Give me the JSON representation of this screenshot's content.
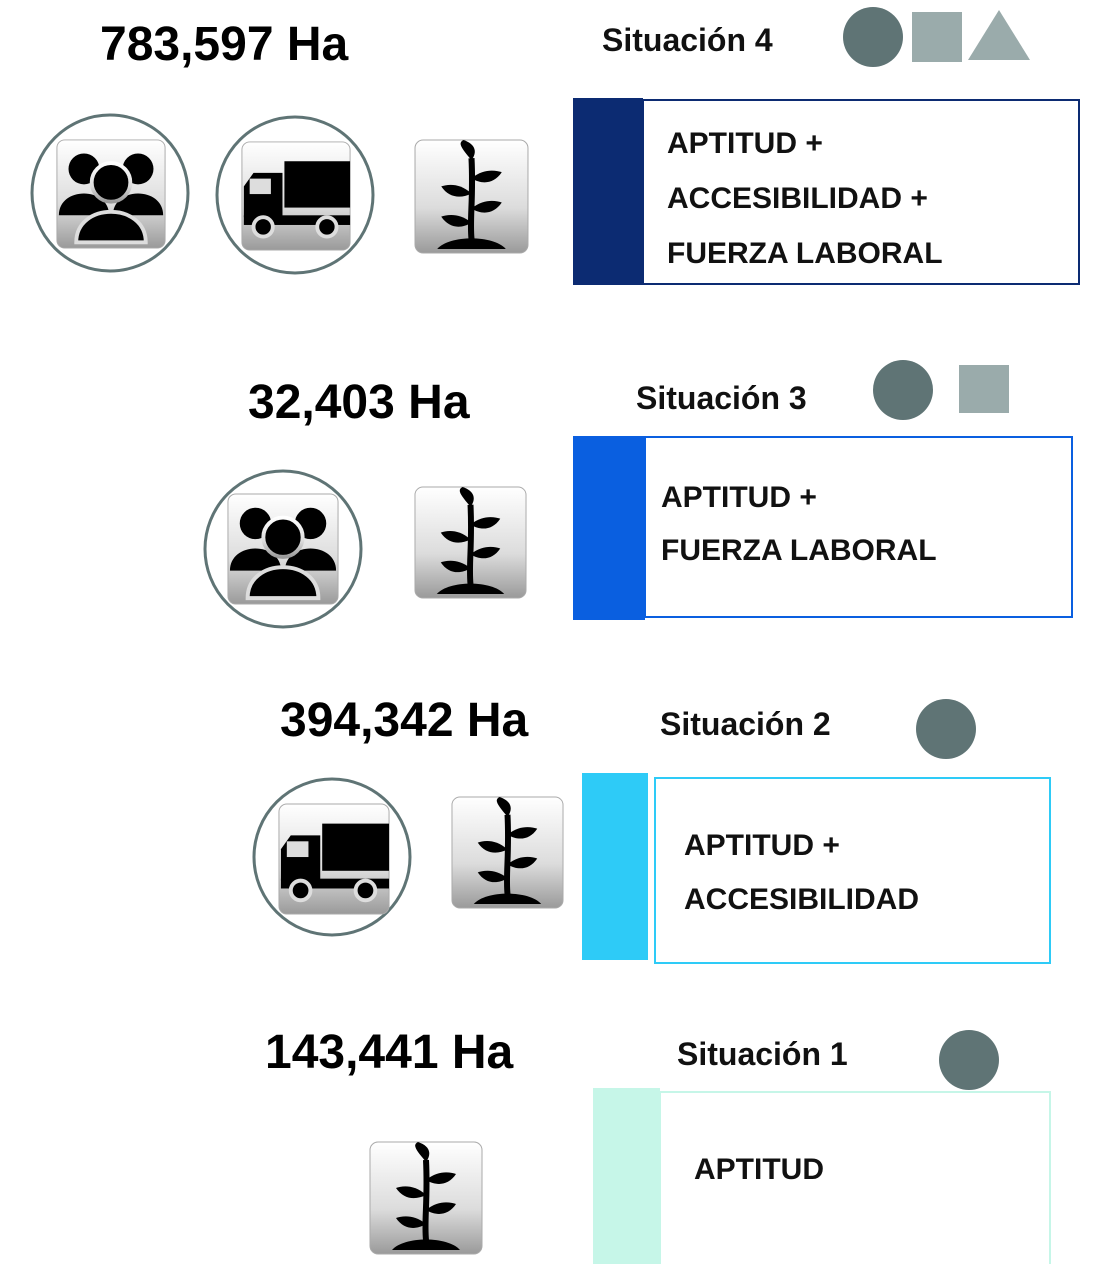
{
  "situations": [
    {
      "area": "783,597 Ha",
      "title": "Situación 4",
      "lines": [
        "APTITUD +",
        "ACCESIBILIDAD +",
        "FUERZA LABORAL"
      ]
    },
    {
      "area": "32,403 Ha",
      "title": "Situación 3",
      "lines": [
        "APTITUD +",
        "FUERZA LABORAL"
      ]
    },
    {
      "area": "394,342 Ha",
      "title": "Situación 2",
      "lines": [
        "APTITUD +",
        "ACCESIBILIDAD"
      ]
    },
    {
      "area": "143,441 Ha",
      "title": "Situación 1",
      "lines": [
        "APTITUD"
      ]
    }
  ]
}
